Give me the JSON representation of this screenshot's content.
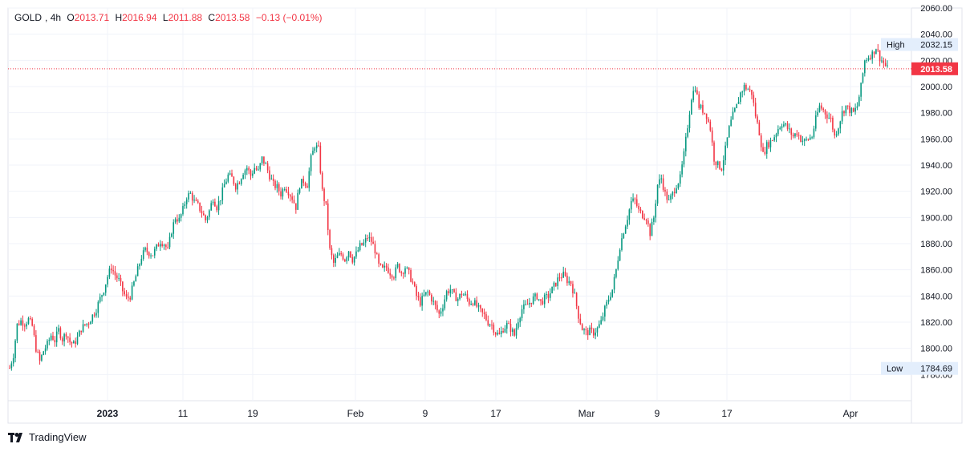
{
  "legend": {
    "symbol": "GOLD",
    "interval": "4h",
    "o_key": "O",
    "o_val": "2013.71",
    "h_key": "H",
    "h_val": "2016.94",
    "l_key": "L",
    "l_val": "2011.88",
    "c_key": "C",
    "c_val": "2013.58",
    "change": "−0.13 (−0.01%)"
  },
  "brand": {
    "name": "TradingView"
  },
  "colors": {
    "up": "#089981",
    "down": "#f23645",
    "grid": "#f0f3fa",
    "axis_text": "#131722",
    "marker_bg": "#e3eefc"
  },
  "chart_data": {
    "type": "candlestick",
    "symbol": "GOLD",
    "interval": "4h",
    "ylim": [
      1760,
      2060
    ],
    "y_ticks": [
      "2060.00",
      "2040.00",
      "2020.00",
      "2000.00",
      "1980.00",
      "1960.00",
      "1940.00",
      "1920.00",
      "1900.00",
      "1880.00",
      "1860.00",
      "1840.00",
      "1820.00",
      "1800.00",
      "1780.00"
    ],
    "x_ticks": [
      "2023",
      "11",
      "19",
      "Feb",
      "9",
      "17",
      "Mar",
      "9",
      "17",
      "Apr"
    ],
    "last_price": "2013.58",
    "high": {
      "label": "High",
      "value": "2032.15"
    },
    "low": {
      "label": "Low",
      "value": "1784.69"
    },
    "close_path": [
      [
        0,
        1785
      ],
      [
        2,
        1795
      ],
      [
        4,
        1818
      ],
      [
        6,
        1821
      ],
      [
        8,
        1819
      ],
      [
        10,
        1822
      ],
      [
        12,
        1817
      ],
      [
        14,
        1800
      ],
      [
        16,
        1790
      ],
      [
        18,
        1798
      ],
      [
        20,
        1803
      ],
      [
        22,
        1810
      ],
      [
        24,
        1806
      ],
      [
        26,
        1814
      ],
      [
        28,
        1807
      ],
      [
        30,
        1812
      ],
      [
        32,
        1805
      ],
      [
        34,
        1803
      ],
      [
        36,
        1808
      ],
      [
        38,
        1815
      ],
      [
        40,
        1818
      ],
      [
        42,
        1820
      ],
      [
        44,
        1825
      ],
      [
        46,
        1830
      ],
      [
        48,
        1838
      ],
      [
        50,
        1845
      ],
      [
        52,
        1855
      ],
      [
        54,
        1862
      ],
      [
        56,
        1856
      ],
      [
        58,
        1852
      ],
      [
        60,
        1844
      ],
      [
        62,
        1838
      ],
      [
        64,
        1840
      ],
      [
        66,
        1850
      ],
      [
        68,
        1860
      ],
      [
        70,
        1870
      ],
      [
        72,
        1875
      ],
      [
        74,
        1873
      ],
      [
        76,
        1872
      ],
      [
        78,
        1877
      ],
      [
        80,
        1882
      ],
      [
        82,
        1880
      ],
      [
        84,
        1875
      ],
      [
        86,
        1890
      ],
      [
        88,
        1900
      ],
      [
        90,
        1898
      ],
      [
        92,
        1906
      ],
      [
        94,
        1916
      ],
      [
        96,
        1918
      ],
      [
        98,
        1912
      ],
      [
        100,
        1909
      ],
      [
        102,
        1904
      ],
      [
        104,
        1898
      ],
      [
        106,
        1905
      ],
      [
        108,
        1915
      ],
      [
        110,
        1908
      ],
      [
        112,
        1915
      ],
      [
        114,
        1925
      ],
      [
        116,
        1932
      ],
      [
        118,
        1930
      ],
      [
        120,
        1924
      ],
      [
        122,
        1928
      ],
      [
        124,
        1935
      ],
      [
        126,
        1938
      ],
      [
        128,
        1932
      ],
      [
        130,
        1938
      ],
      [
        132,
        1935
      ],
      [
        134,
        1945
      ],
      [
        136,
        1940
      ],
      [
        138,
        1932
      ],
      [
        140,
        1925
      ],
      [
        142,
        1923
      ],
      [
        144,
        1918
      ],
      [
        146,
        1924
      ],
      [
        148,
        1920
      ],
      [
        150,
        1915
      ],
      [
        152,
        1908
      ],
      [
        154,
        1925
      ],
      [
        156,
        1928
      ],
      [
        158,
        1925
      ],
      [
        160,
        1945
      ],
      [
        162,
        1955
      ],
      [
        164,
        1952
      ],
      [
        166,
        1920
      ],
      [
        168,
        1908
      ],
      [
        170,
        1875
      ],
      [
        172,
        1865
      ],
      [
        174,
        1870
      ],
      [
        176,
        1872
      ],
      [
        178,
        1868
      ],
      [
        180,
        1875
      ],
      [
        182,
        1868
      ],
      [
        184,
        1872
      ],
      [
        186,
        1878
      ],
      [
        188,
        1880
      ],
      [
        190,
        1885
      ],
      [
        192,
        1882
      ],
      [
        194,
        1875
      ],
      [
        196,
        1863
      ],
      [
        198,
        1860
      ],
      [
        200,
        1862
      ],
      [
        202,
        1858
      ],
      [
        204,
        1856
      ],
      [
        206,
        1863
      ],
      [
        208,
        1858
      ],
      [
        210,
        1862
      ],
      [
        212,
        1857
      ],
      [
        214,
        1850
      ],
      [
        216,
        1840
      ],
      [
        218,
        1835
      ],
      [
        220,
        1840
      ],
      [
        222,
        1843
      ],
      [
        224,
        1838
      ],
      [
        226,
        1832
      ],
      [
        228,
        1826
      ],
      [
        230,
        1833
      ],
      [
        232,
        1843
      ],
      [
        234,
        1845
      ],
      [
        236,
        1840
      ],
      [
        238,
        1838
      ],
      [
        240,
        1842
      ],
      [
        242,
        1840
      ],
      [
        244,
        1835
      ],
      [
        246,
        1836
      ],
      [
        248,
        1832
      ],
      [
        250,
        1828
      ],
      [
        252,
        1825
      ],
      [
        254,
        1820
      ],
      [
        256,
        1818
      ],
      [
        258,
        1812
      ],
      [
        260,
        1810
      ],
      [
        262,
        1815
      ],
      [
        264,
        1818
      ],
      [
        266,
        1815
      ],
      [
        268,
        1810
      ],
      [
        270,
        1822
      ],
      [
        272,
        1830
      ],
      [
        274,
        1832
      ],
      [
        276,
        1835
      ],
      [
        278,
        1838
      ],
      [
        280,
        1840
      ],
      [
        282,
        1835
      ],
      [
        284,
        1838
      ],
      [
        286,
        1840
      ],
      [
        288,
        1845
      ],
      [
        290,
        1850
      ],
      [
        292,
        1855
      ],
      [
        294,
        1856
      ],
      [
        296,
        1852
      ],
      [
        298,
        1850
      ],
      [
        300,
        1840
      ],
      [
        302,
        1825
      ],
      [
        304,
        1815
      ],
      [
        306,
        1812
      ],
      [
        308,
        1813
      ],
      [
        310,
        1812
      ],
      [
        312,
        1815
      ],
      [
        314,
        1820
      ],
      [
        316,
        1830
      ],
      [
        318,
        1838
      ],
      [
        320,
        1845
      ],
      [
        322,
        1860
      ],
      [
        324,
        1878
      ],
      [
        326,
        1890
      ],
      [
        328,
        1900
      ],
      [
        330,
        1912
      ],
      [
        332,
        1913
      ],
      [
        334,
        1905
      ],
      [
        336,
        1902
      ],
      [
        338,
        1900
      ],
      [
        340,
        1888
      ],
      [
        342,
        1900
      ],
      [
        344,
        1925
      ],
      [
        346,
        1930
      ],
      [
        348,
        1918
      ],
      [
        350,
        1912
      ],
      [
        352,
        1918
      ],
      [
        354,
        1925
      ],
      [
        356,
        1930
      ],
      [
        358,
        1948
      ],
      [
        360,
        1970
      ],
      [
        362,
        1992
      ],
      [
        364,
        2000
      ],
      [
        366,
        1985
      ],
      [
        368,
        1982
      ],
      [
        370,
        1978
      ],
      [
        372,
        1968
      ],
      [
        374,
        1945
      ],
      [
        376,
        1940
      ],
      [
        378,
        1938
      ],
      [
        380,
        1952
      ],
      [
        382,
        1968
      ],
      [
        384,
        1978
      ],
      [
        386,
        1985
      ],
      [
        388,
        1995
      ],
      [
        390,
        2000
      ],
      [
        392,
        1998
      ],
      [
        394,
        1995
      ],
      [
        396,
        1978
      ],
      [
        398,
        1965
      ],
      [
        400,
        1948
      ],
      [
        402,
        1955
      ],
      [
        404,
        1958
      ],
      [
        406,
        1962
      ],
      [
        408,
        1968
      ],
      [
        410,
        1972
      ],
      [
        412,
        1970
      ],
      [
        414,
        1966
      ],
      [
        416,
        1962
      ],
      [
        418,
        1965
      ],
      [
        420,
        1960
      ],
      [
        422,
        1958
      ],
      [
        424,
        1960
      ],
      [
        426,
        1962
      ],
      [
        428,
        1975
      ],
      [
        430,
        1985
      ],
      [
        432,
        1982
      ],
      [
        434,
        1978
      ],
      [
        436,
        1975
      ],
      [
        438,
        1962
      ],
      [
        440,
        1970
      ],
      [
        442,
        1980
      ],
      [
        444,
        1985
      ],
      [
        446,
        1982
      ],
      [
        448,
        1980
      ],
      [
        450,
        1985
      ],
      [
        452,
        2000
      ],
      [
        454,
        2020
      ],
      [
        456,
        2023
      ],
      [
        458,
        2025
      ],
      [
        460,
        2030
      ],
      [
        462,
        2022
      ],
      [
        464,
        2018
      ],
      [
        466,
        2013.58
      ]
    ]
  }
}
